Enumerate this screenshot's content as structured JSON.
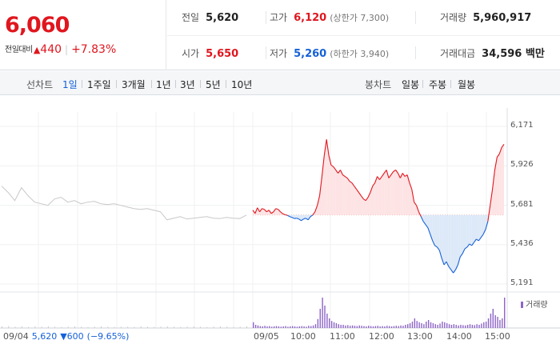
{
  "header": {
    "price": "6,060",
    "change_label": "전일대비",
    "change_arrow": "▲",
    "change_value": "440",
    "change_pct": "+7.83%",
    "stats": {
      "prev_close": {
        "label": "전일",
        "value": "5,620"
      },
      "high": {
        "label": "고가",
        "value": "6,120",
        "sub": "(상한가 7,300)"
      },
      "volume": {
        "label": "거래량",
        "value": "5,960,917"
      },
      "open": {
        "label": "시가",
        "value": "5,650"
      },
      "low": {
        "label": "저가",
        "value": "5,260",
        "sub": "(하한가 3,940)"
      },
      "trade_value": {
        "label": "거래대금",
        "value": "34,596 백만"
      }
    }
  },
  "tabs": {
    "line_title": "선차트",
    "line_periods": [
      "1일",
      "1주일",
      "3개월",
      "1년",
      "3년",
      "5년",
      "10년"
    ],
    "active_period": "1일",
    "candle_title": "봉차트",
    "candle_periods": [
      "일봉",
      "주봉",
      "월봉"
    ]
  },
  "chart_data": {
    "type": "line",
    "y_ticks": [
      "6,171",
      "5,926",
      "5,681",
      "5,436",
      "5,191"
    ],
    "ylim": [
      5191,
      6171
    ],
    "baseline": 5620,
    "x_ticks": [
      "09/04",
      "09/05",
      "10:00",
      "11:00",
      "12:00",
      "13:00",
      "14:00",
      "15:00"
    ],
    "volume_legend": "거래량",
    "prev_day": {
      "date": "09/04",
      "close": "5,620",
      "change": "▼600",
      "pct": "(−9.65%)"
    },
    "prev_day_series": [
      5800,
      5760,
      5710,
      5790,
      5740,
      5700,
      5690,
      5680,
      5720,
      5730,
      5700,
      5710,
      5690,
      5700,
      5705,
      5690,
      5685,
      5690,
      5680,
      5670,
      5660,
      5655,
      5660,
      5650,
      5640,
      5590,
      5600,
      5610,
      5595,
      5600,
      5605,
      5610,
      5600,
      5598,
      5605,
      5600,
      5598,
      5620
    ],
    "today_series": [
      5650,
      5630,
      5665,
      5640,
      5660,
      5655,
      5640,
      5650,
      5630,
      5640,
      5660,
      5655,
      5640,
      5628,
      5622,
      5618,
      5610,
      5605,
      5598,
      5600,
      5595,
      5585,
      5595,
      5600,
      5590,
      5610,
      5620,
      5640,
      5680,
      5740,
      5860,
      5990,
      6090,
      5990,
      5930,
      5920,
      5900,
      5880,
      5900,
      5870,
      5860,
      5850,
      5830,
      5820,
      5800,
      5780,
      5760,
      5740,
      5720,
      5710,
      5730,
      5760,
      5800,
      5820,
      5860,
      5840,
      5860,
      5880,
      5900,
      5850,
      5870,
      5890,
      5900,
      5880,
      5850,
      5880,
      5860,
      5870,
      5820,
      5780,
      5700,
      5680,
      5640,
      5610,
      5580,
      5560,
      5540,
      5500,
      5460,
      5430,
      5420,
      5400,
      5350,
      5310,
      5330,
      5300,
      5280,
      5260,
      5280,
      5310,
      5360,
      5380,
      5410,
      5420,
      5440,
      5430,
      5450,
      5470,
      5460,
      5480,
      5500,
      5530,
      5580,
      5680,
      5780,
      5900,
      5980,
      6000,
      6040,
      6060
    ],
    "volume_prev": [
      0.05,
      0.06,
      0.04,
      0.05,
      0.03,
      0.05,
      0.04,
      0.05,
      0.04,
      0.03,
      0.04,
      0.05,
      0.04,
      0.03,
      0.04,
      0.05,
      0.04,
      0.03,
      0.04,
      0.04,
      0.03,
      0.05,
      0.04,
      0.03,
      0.04,
      0.05,
      0.04,
      0.03,
      0.04,
      0.05,
      0.04,
      0.03,
      0.04,
      0.05,
      0.04,
      0.03,
      0.04,
      0.05
    ],
    "volume_today": [
      0.18,
      0.1,
      0.08,
      0.06,
      0.05,
      0.07,
      0.05,
      0.06,
      0.04,
      0.05,
      0.06,
      0.05,
      0.04,
      0.05,
      0.06,
      0.04,
      0.05,
      0.06,
      0.05,
      0.04,
      0.05,
      0.06,
      0.05,
      0.04,
      0.07,
      0.06,
      0.08,
      0.12,
      0.28,
      0.6,
      0.95,
      0.7,
      0.45,
      0.3,
      0.22,
      0.18,
      0.15,
      0.12,
      0.1,
      0.1,
      0.08,
      0.09,
      0.07,
      0.08,
      0.07,
      0.06,
      0.08,
      0.07,
      0.06,
      0.05,
      0.07,
      0.06,
      0.05,
      0.06,
      0.07,
      0.05,
      0.06,
      0.05,
      0.07,
      0.06,
      0.05,
      0.06,
      0.07,
      0.06,
      0.08,
      0.07,
      0.1,
      0.12,
      0.15,
      0.2,
      0.3,
      0.22,
      0.18,
      0.15,
      0.12,
      0.2,
      0.25,
      0.18,
      0.15,
      0.12,
      0.1,
      0.14,
      0.2,
      0.18,
      0.15,
      0.12,
      0.1,
      0.12,
      0.1,
      0.08,
      0.1,
      0.09,
      0.08,
      0.1,
      0.12,
      0.1,
      0.09,
      0.12,
      0.1,
      0.14,
      0.18,
      0.2,
      0.3,
      0.45,
      0.6,
      0.4,
      0.35,
      0.25,
      0.3,
      0.95
    ],
    "colors": {
      "up": "#e0161e",
      "down": "#1561d8",
      "up_fill": "#fde3e4",
      "down_fill": "#dde9f8",
      "prev_line": "#c8c8c8",
      "volume": "#8e64c8",
      "volume_prev": "#c9c9c9"
    }
  }
}
